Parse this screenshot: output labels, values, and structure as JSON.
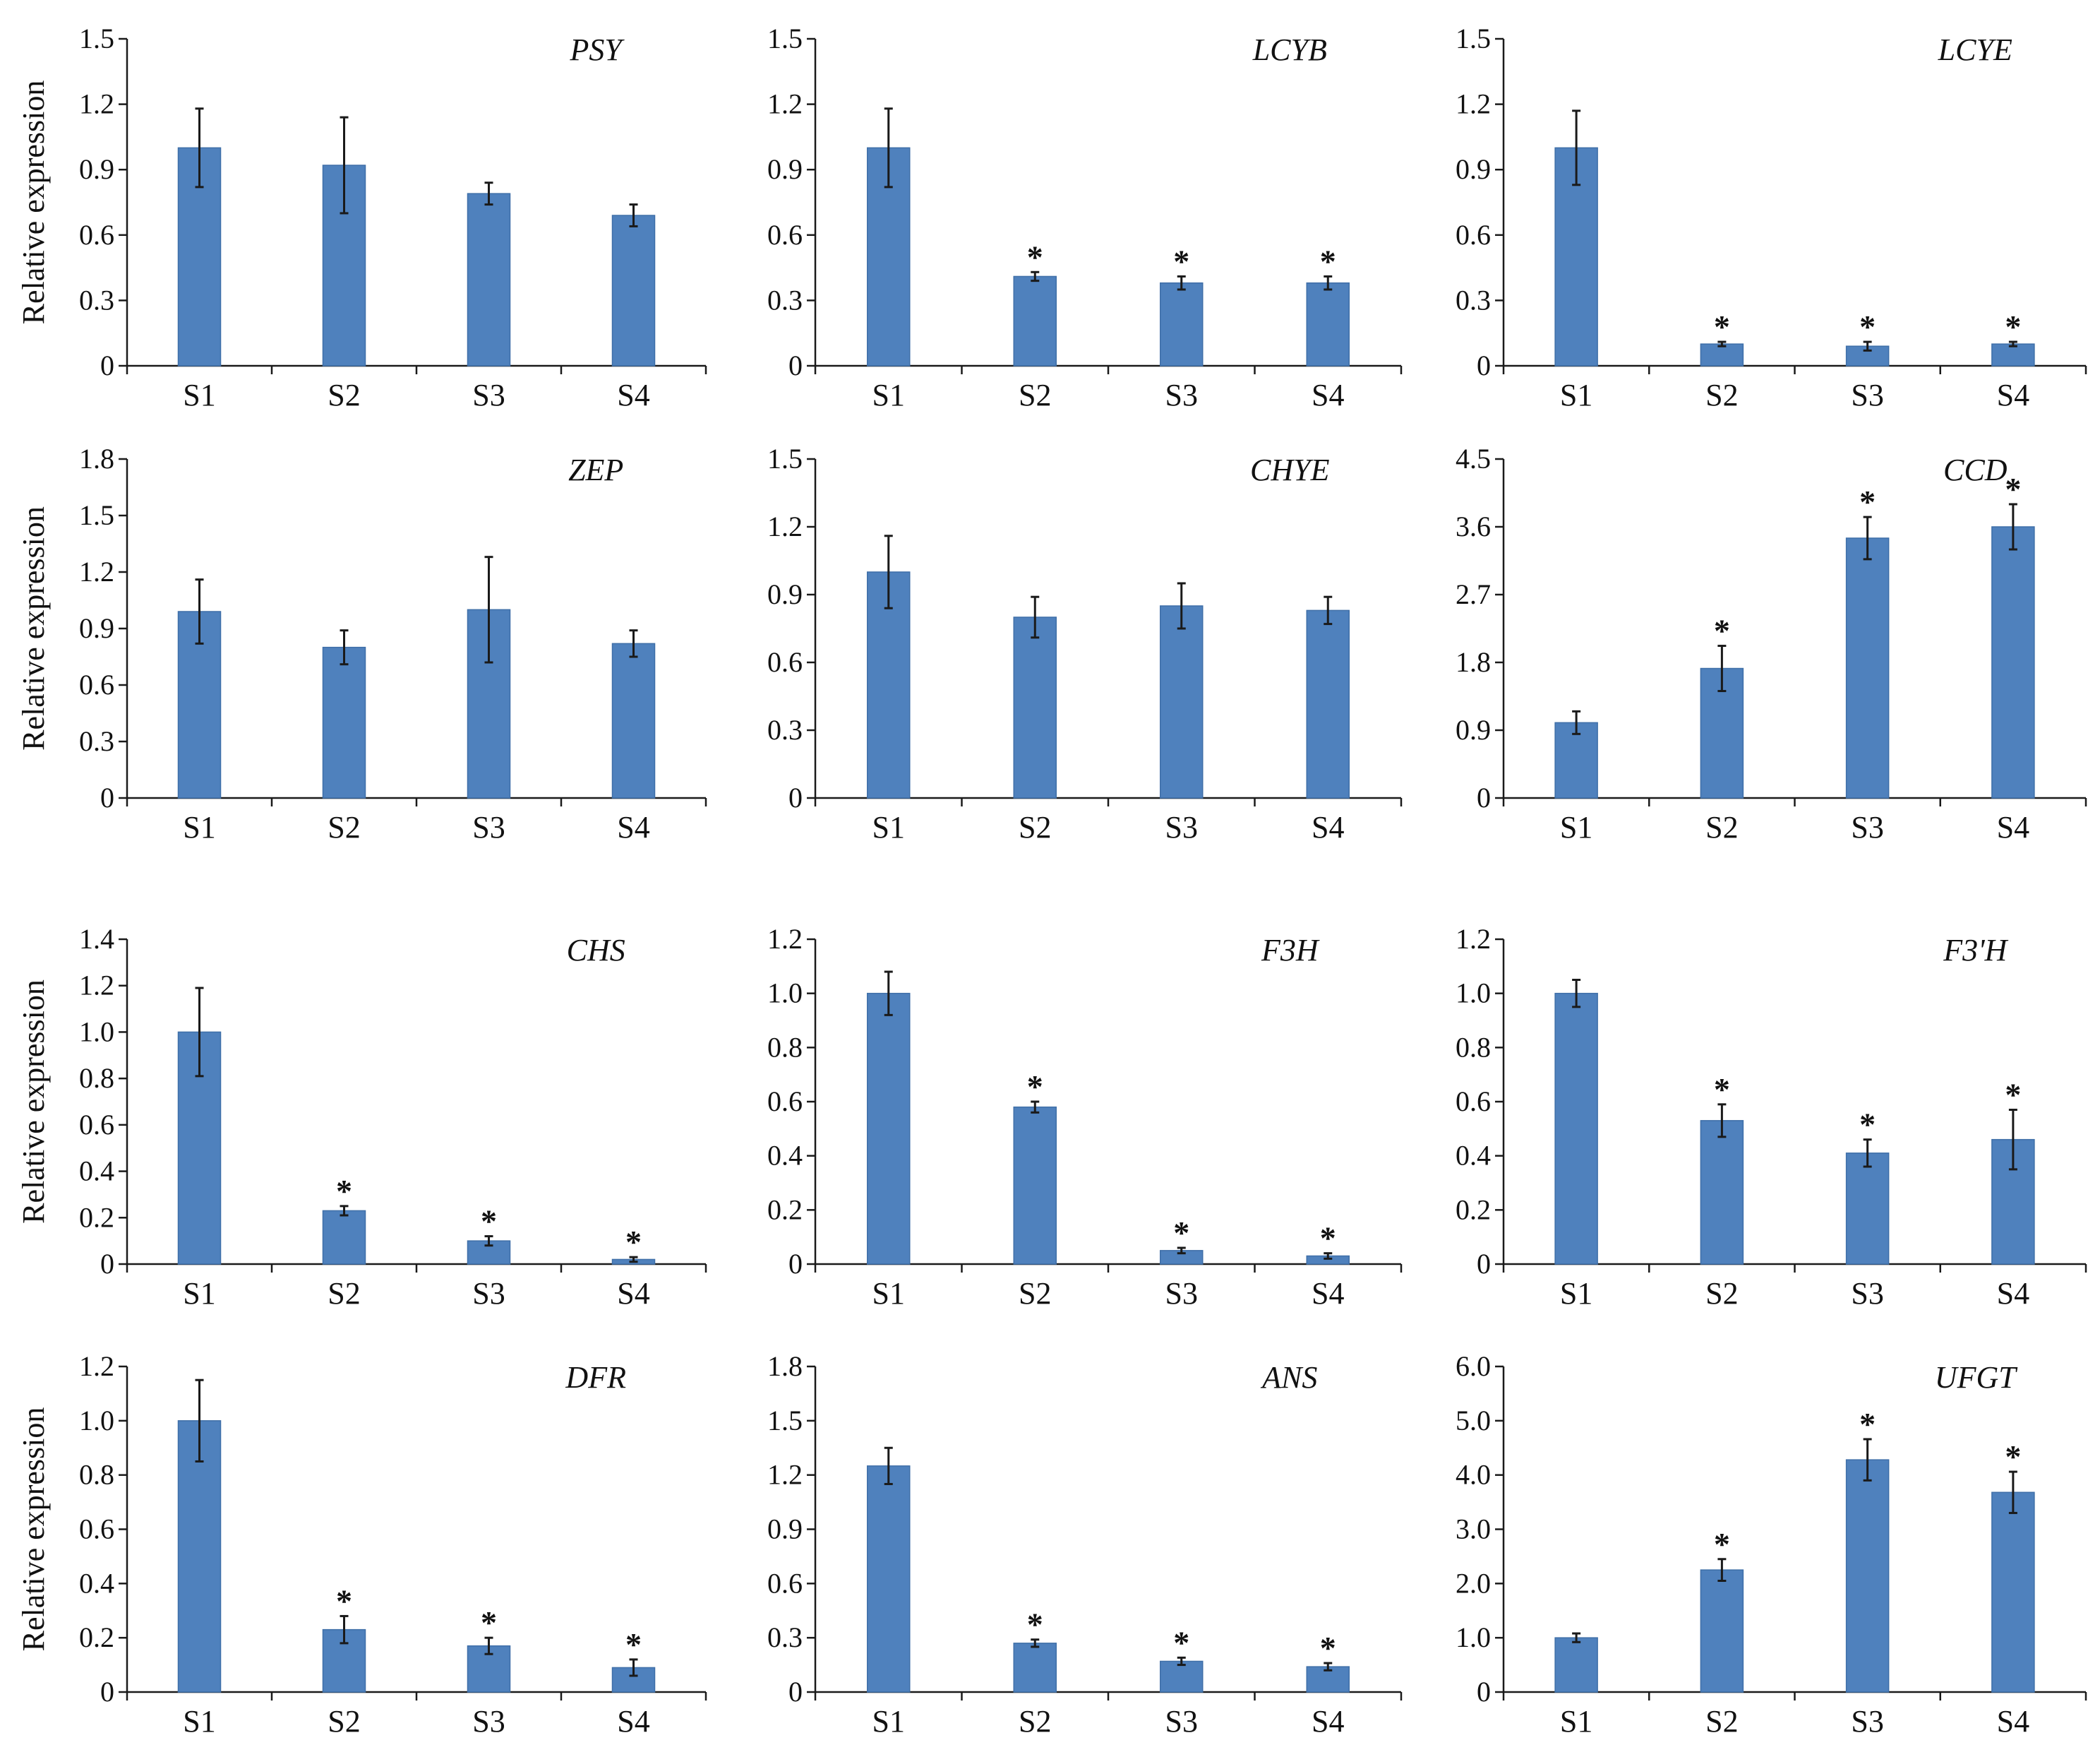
{
  "figure": {
    "ylabel": "Relative expression"
  },
  "colors": {
    "bar": "#4f81bd",
    "bar_edge": "#3f6fa8",
    "axis": "#1a1a1a"
  },
  "chart_data": [
    {
      "type": "bar",
      "title": "PSY",
      "ylabel": "Relative expression",
      "categories": [
        "S1",
        "S2",
        "S3",
        "S4"
      ],
      "values": [
        1.0,
        0.92,
        0.79,
        0.69
      ],
      "errors": [
        0.18,
        0.22,
        0.05,
        0.05
      ],
      "significant": [
        false,
        false,
        false,
        false
      ],
      "ylim": [
        0,
        1.5
      ],
      "ticks": [
        "0",
        "0.3",
        "0.6",
        "0.9",
        "1.2",
        "1.5"
      ]
    },
    {
      "type": "bar",
      "title": "LCYB",
      "ylabel": "",
      "categories": [
        "S1",
        "S2",
        "S3",
        "S4"
      ],
      "values": [
        1.0,
        0.41,
        0.38,
        0.38
      ],
      "errors": [
        0.18,
        0.02,
        0.03,
        0.03
      ],
      "significant": [
        false,
        true,
        true,
        true
      ],
      "ylim": [
        0,
        1.5
      ],
      "ticks": [
        "0",
        "0.3",
        "0.6",
        "0.9",
        "1.2",
        "1.5"
      ]
    },
    {
      "type": "bar",
      "title": "LCYE",
      "ylabel": "",
      "categories": [
        "S1",
        "S2",
        "S3",
        "S4"
      ],
      "values": [
        1.0,
        0.1,
        0.09,
        0.1
      ],
      "errors": [
        0.17,
        0.01,
        0.02,
        0.01
      ],
      "significant": [
        false,
        true,
        true,
        true
      ],
      "ylim": [
        0,
        1.5
      ],
      "ticks": [
        "0",
        "0.3",
        "0.6",
        "0.9",
        "1.2",
        "1.5"
      ]
    },
    {
      "type": "bar",
      "title": "ZEP",
      "ylabel": "Relative expression",
      "categories": [
        "S1",
        "S2",
        "S3",
        "S4"
      ],
      "values": [
        0.99,
        0.8,
        1.0,
        0.82
      ],
      "errors": [
        0.17,
        0.09,
        0.28,
        0.07
      ],
      "significant": [
        false,
        false,
        false,
        false
      ],
      "ylim": [
        0,
        1.8
      ],
      "ticks": [
        "0",
        "0.3",
        "0.6",
        "0.9",
        "1.2",
        "1.5",
        "1.8"
      ]
    },
    {
      "type": "bar",
      "title": "CHYE",
      "ylabel": "",
      "categories": [
        "S1",
        "S2",
        "S3",
        "S4"
      ],
      "values": [
        1.0,
        0.8,
        0.85,
        0.83
      ],
      "errors": [
        0.16,
        0.09,
        0.1,
        0.06
      ],
      "significant": [
        false,
        false,
        false,
        false
      ],
      "ylim": [
        0,
        1.5
      ],
      "ticks": [
        "0",
        "0.3",
        "0.6",
        "0.9",
        "1.2",
        "1.5"
      ]
    },
    {
      "type": "bar",
      "title": "CCD",
      "ylabel": "",
      "categories": [
        "S1",
        "S2",
        "S3",
        "S4"
      ],
      "values": [
        1.0,
        1.72,
        3.45,
        3.6
      ],
      "errors": [
        0.15,
        0.3,
        0.28,
        0.3
      ],
      "significant": [
        false,
        true,
        true,
        true
      ],
      "ylim": [
        0,
        4.5
      ],
      "ticks": [
        "0",
        "0.9",
        "1.8",
        "2.7",
        "3.6",
        "4.5"
      ]
    },
    {
      "type": "bar",
      "title": "CHS",
      "ylabel": "Relative expression",
      "categories": [
        "S1",
        "S2",
        "S3",
        "S4"
      ],
      "values": [
        1.0,
        0.23,
        0.1,
        0.02
      ],
      "errors": [
        0.19,
        0.02,
        0.02,
        0.01
      ],
      "significant": [
        false,
        true,
        true,
        true
      ],
      "ylim": [
        0,
        1.4
      ],
      "ticks": [
        "0",
        "0.2",
        "0.4",
        "0.6",
        "0.8",
        "1.0",
        "1.2",
        "1.4"
      ]
    },
    {
      "type": "bar",
      "title": "F3H",
      "ylabel": "",
      "categories": [
        "S1",
        "S2",
        "S3",
        "S4"
      ],
      "values": [
        1.0,
        0.58,
        0.05,
        0.03
      ],
      "errors": [
        0.08,
        0.02,
        0.01,
        0.01
      ],
      "significant": [
        false,
        true,
        true,
        true
      ],
      "ylim": [
        0,
        1.2
      ],
      "ticks": [
        "0",
        "0.2",
        "0.4",
        "0.6",
        "0.8",
        "1.0",
        "1.2"
      ]
    },
    {
      "type": "bar",
      "title": "F3'H",
      "ylabel": "",
      "categories": [
        "S1",
        "S2",
        "S3",
        "S4"
      ],
      "values": [
        1.0,
        0.53,
        0.41,
        0.46
      ],
      "errors": [
        0.05,
        0.06,
        0.05,
        0.11
      ],
      "significant": [
        false,
        true,
        true,
        true
      ],
      "ylim": [
        0,
        1.2
      ],
      "ticks": [
        "0",
        "0.2",
        "0.4",
        "0.6",
        "0.8",
        "1.0",
        "1.2"
      ]
    },
    {
      "type": "bar",
      "title": "DFR",
      "ylabel": "Relative expression",
      "categories": [
        "S1",
        "S2",
        "S3",
        "S4"
      ],
      "values": [
        1.0,
        0.23,
        0.17,
        0.09
      ],
      "errors": [
        0.15,
        0.05,
        0.03,
        0.03
      ],
      "significant": [
        false,
        true,
        true,
        true
      ],
      "ylim": [
        0,
        1.2
      ],
      "ticks": [
        "0",
        "0.2",
        "0.4",
        "0.6",
        "0.8",
        "1.0",
        "1.2"
      ]
    },
    {
      "type": "bar",
      "title": "ANS",
      "ylabel": "",
      "categories": [
        "S1",
        "S2",
        "S3",
        "S4"
      ],
      "values": [
        1.25,
        0.27,
        0.17,
        0.14
      ],
      "errors": [
        0.1,
        0.02,
        0.02,
        0.02
      ],
      "significant": [
        false,
        true,
        true,
        true
      ],
      "ylim": [
        0,
        1.8
      ],
      "ticks": [
        "0",
        "0.3",
        "0.6",
        "0.9",
        "1.2",
        "1.5",
        "1.8"
      ]
    },
    {
      "type": "bar",
      "title": "UFGT",
      "ylabel": "",
      "categories": [
        "S1",
        "S2",
        "S3",
        "S4"
      ],
      "values": [
        1.0,
        2.25,
        4.28,
        3.68
      ],
      "errors": [
        0.08,
        0.2,
        0.38,
        0.38
      ],
      "significant": [
        false,
        true,
        true,
        true
      ],
      "ylim": [
        0,
        6.0
      ],
      "ticks": [
        "0",
        "1.0",
        "2.0",
        "3.0",
        "4.0",
        "5.0",
        "6.0"
      ]
    }
  ]
}
